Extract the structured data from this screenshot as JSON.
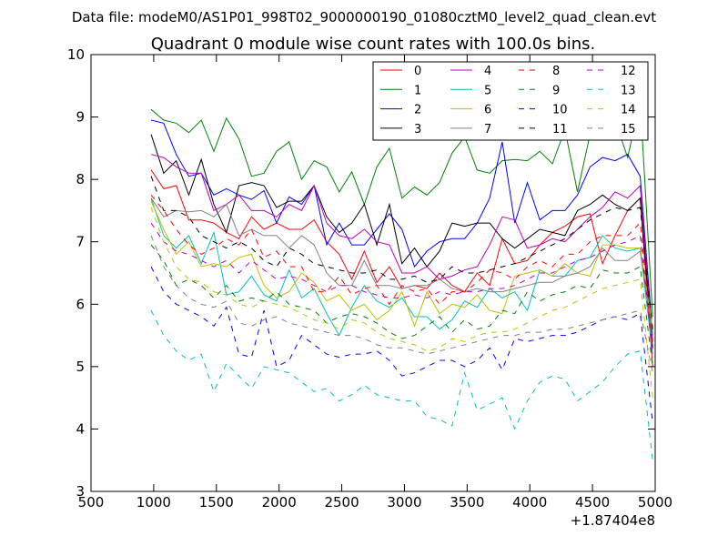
{
  "chart_data": {
    "type": "line",
    "suptitle": "Data file: modeM0/AS1P01_998T02_9000000190_01080cztM0_level2_quad_clean.evt",
    "title": "Quadrant 0 module wise count rates with 100.0s bins.",
    "xlabel": "",
    "ylabel": "",
    "x_offset_label": "+1.87404e8",
    "xlim": [
      500,
      5000
    ],
    "ylim": [
      3,
      10
    ],
    "xticks": [
      "500",
      "1000",
      "1500",
      "2000",
      "2500",
      "3000",
      "3500",
      "4000",
      "4500",
      "5000"
    ],
    "yticks": [
      "3",
      "4",
      "5",
      "6",
      "7",
      "8",
      "9",
      "10"
    ],
    "grid": false,
    "legend_position": "top-right",
    "x": [
      980,
      1080,
      1180,
      1280,
      1380,
      1480,
      1580,
      1680,
      1780,
      1880,
      1980,
      2080,
      2180,
      2280,
      2380,
      2480,
      2580,
      2680,
      2780,
      2880,
      2980,
      3080,
      3180,
      3280,
      3380,
      3480,
      3580,
      3680,
      3780,
      3880,
      3980,
      4080,
      4180,
      4280,
      4380,
      4480,
      4580,
      4680,
      4780,
      4880,
      4980
    ],
    "series": [
      {
        "name": "0",
        "color": "#ff0000",
        "dash": false,
        "values": [
          8.15,
          7.85,
          7.9,
          7.35,
          7.35,
          7.3,
          7.15,
          7.05,
          7.4,
          7.2,
          7.3,
          7.2,
          7.2,
          7.35,
          7.0,
          6.8,
          6.4,
          6.85,
          6.35,
          6.6,
          6.25,
          6.3,
          6.25,
          6.5,
          6.3,
          6.2,
          6.5,
          6.3,
          7.05,
          6.65,
          6.7,
          6.95,
          7.15,
          7.25,
          7.4,
          7.45,
          6.65,
          7.1,
          7.5,
          7.7,
          5.0
        ]
      },
      {
        "name": "1",
        "color": "#008000",
        "dash": false,
        "values": [
          9.12,
          8.95,
          8.9,
          8.75,
          8.95,
          8.45,
          8.98,
          8.65,
          8.05,
          8.1,
          8.45,
          8.6,
          8.0,
          8.3,
          8.2,
          7.8,
          8.12,
          7.6,
          8.2,
          8.5,
          7.7,
          7.88,
          7.75,
          7.95,
          8.42,
          8.68,
          8.15,
          8.1,
          8.3,
          8.32,
          8.3,
          8.45,
          8.25,
          8.8,
          7.8,
          8.72,
          8.95,
          8.95,
          8.35,
          9.25,
          5.8
        ]
      },
      {
        "name": "2",
        "color": "#0000ff",
        "dash": false,
        "values": [
          8.95,
          8.9,
          8.4,
          8.05,
          8.1,
          7.75,
          7.85,
          7.75,
          7.68,
          7.82,
          7.3,
          7.72,
          7.6,
          7.9,
          6.95,
          7.3,
          6.95,
          6.95,
          7.2,
          7.45,
          7.2,
          6.6,
          6.85,
          7.0,
          7.05,
          7.05,
          7.3,
          7.7,
          8.6,
          7.3,
          7.95,
          7.35,
          7.5,
          7.5,
          7.75,
          8.2,
          8.35,
          8.3,
          8.4,
          8.05,
          5.5
        ]
      },
      {
        "name": "3",
        "color": "#000000",
        "dash": false,
        "values": [
          8.72,
          8.1,
          8.3,
          7.75,
          8.32,
          7.6,
          7.15,
          7.9,
          7.95,
          7.9,
          7.55,
          7.65,
          7.65,
          7.9,
          7.4,
          7.15,
          7.3,
          7.6,
          6.95,
          7.6,
          6.65,
          6.9,
          6.6,
          6.85,
          7.3,
          7.25,
          7.3,
          7.3,
          7.05,
          6.9,
          7.05,
          7.2,
          7.15,
          7.1,
          7.5,
          7.6,
          7.75,
          7.6,
          7.5,
          7.7,
          5.3
        ]
      },
      {
        "name": "4",
        "color": "#bf00bf",
        "dash": false,
        "values": [
          8.4,
          8.35,
          8.2,
          8.1,
          8.1,
          7.5,
          7.6,
          7.75,
          7.5,
          7.5,
          7.4,
          7.6,
          7.5,
          7.9,
          7.3,
          7.1,
          7.05,
          7.2,
          7.0,
          6.95,
          6.5,
          6.5,
          6.6,
          6.4,
          6.45,
          6.55,
          6.6,
          6.95,
          7.4,
          7.35,
          6.9,
          6.95,
          7.05,
          7.0,
          7.2,
          7.4,
          7.55,
          7.8,
          7.7,
          7.9,
          5.4
        ]
      },
      {
        "name": "5",
        "color": "#00bfbf",
        "dash": false,
        "values": [
          7.7,
          7.1,
          6.9,
          7.1,
          6.65,
          7.15,
          6.15,
          6.2,
          6.45,
          6.15,
          6.05,
          6.55,
          6.1,
          6.25,
          5.85,
          5.5,
          5.95,
          6.3,
          6.05,
          5.95,
          6.1,
          5.8,
          5.8,
          5.6,
          5.75,
          6.05,
          5.95,
          6.25,
          6.1,
          6.2,
          5.9,
          6.55,
          6.45,
          6.45,
          6.7,
          6.75,
          7.1,
          6.9,
          6.85,
          6.9,
          5.2
        ]
      },
      {
        "name": "6",
        "color": "#bfbf00",
        "dash": false,
        "values": [
          7.65,
          7.2,
          6.8,
          7.0,
          6.6,
          6.65,
          6.6,
          6.75,
          6.8,
          6.3,
          6.1,
          6.2,
          6.5,
          6.35,
          6.05,
          6.15,
          5.9,
          6.0,
          5.75,
          5.9,
          6.2,
          5.65,
          6.2,
          5.85,
          6.0,
          5.95,
          6.15,
          5.9,
          5.85,
          6.45,
          6.5,
          6.55,
          6.45,
          6.65,
          6.5,
          6.45,
          6.95,
          6.95,
          6.9,
          6.9,
          5.6
        ]
      },
      {
        "name": "7",
        "color": "#808080",
        "dash": false,
        "values": [
          7.7,
          7.4,
          7.5,
          7.48,
          7.5,
          7.4,
          7.6,
          7.1,
          7.2,
          7.1,
          7.1,
          6.9,
          7.1,
          6.95,
          6.5,
          6.3,
          6.3,
          6.7,
          6.3,
          6.3,
          6.25,
          6.3,
          6.3,
          6.4,
          6.25,
          6.2,
          6.25,
          6.2,
          6.2,
          6.25,
          6.3,
          6.35,
          6.35,
          6.45,
          6.5,
          6.6,
          6.9,
          6.7,
          6.7,
          6.85,
          5.5
        ]
      },
      {
        "name": "8",
        "color": "#ff0000",
        "dash": true,
        "values": [
          7.75,
          7.5,
          7.2,
          6.95,
          6.8,
          6.9,
          7.05,
          6.95,
          7.2,
          6.75,
          6.85,
          6.6,
          6.6,
          6.2,
          6.2,
          6.45,
          6.15,
          6.25,
          6.3,
          6.0,
          6.3,
          6.2,
          6.25,
          6.0,
          6.2,
          6.2,
          6.35,
          6.55,
          6.5,
          6.4,
          6.6,
          6.7,
          6.6,
          6.8,
          6.8,
          7.0,
          7.1,
          7.1,
          7.1,
          7.3,
          5.3
        ]
      },
      {
        "name": "9",
        "color": "#008000",
        "dash": true,
        "values": [
          6.95,
          6.7,
          6.3,
          6.4,
          6.3,
          6.1,
          6.3,
          6.05,
          6.1,
          6.05,
          6.2,
          6.0,
          5.95,
          5.9,
          5.7,
          5.8,
          5.85,
          5.8,
          5.7,
          5.55,
          5.45,
          5.5,
          5.65,
          5.8,
          5.55,
          5.75,
          5.6,
          5.65,
          5.9,
          5.85,
          6.2,
          6.05,
          6.15,
          6.2,
          6.3,
          6.25,
          6.55,
          6.5,
          6.5,
          6.6,
          5.0
        ]
      },
      {
        "name": "10",
        "color": "#0000ff",
        "dash": true,
        "values": [
          6.6,
          6.2,
          6.0,
          5.9,
          5.8,
          5.65,
          5.95,
          5.2,
          5.15,
          5.9,
          5.0,
          5.1,
          5.5,
          5.35,
          5.2,
          5.15,
          5.2,
          5.2,
          5.25,
          5.1,
          4.85,
          4.9,
          5.0,
          5.1,
          5.1,
          5.0,
          5.1,
          5.3,
          4.95,
          5.45,
          5.4,
          5.45,
          5.5,
          5.5,
          5.55,
          5.65,
          5.75,
          5.8,
          5.75,
          5.85,
          4.1
        ]
      },
      {
        "name": "11",
        "color": "#000000",
        "dash": true,
        "values": [
          8.05,
          7.5,
          7.5,
          7.4,
          7.1,
          7.0,
          6.9,
          7.0,
          6.9,
          6.7,
          6.6,
          6.9,
          6.8,
          6.65,
          6.6,
          6.55,
          6.5,
          6.5,
          6.55,
          6.4,
          6.4,
          6.45,
          6.35,
          6.4,
          6.6,
          6.5,
          6.5,
          6.55,
          6.6,
          6.65,
          6.75,
          6.85,
          6.95,
          7.05,
          7.2,
          7.35,
          7.45,
          7.55,
          7.5,
          7.55,
          5.6
        ]
      },
      {
        "name": "12",
        "color": "#bf00bf",
        "dash": true,
        "values": [
          7.3,
          7.0,
          6.85,
          6.8,
          6.7,
          6.6,
          6.7,
          6.5,
          6.7,
          6.55,
          6.4,
          6.45,
          6.4,
          6.3,
          6.2,
          6.3,
          6.3,
          6.2,
          6.15,
          6.1,
          6.1,
          6.15,
          6.1,
          6.2,
          6.15,
          6.2,
          6.2,
          6.25,
          6.25,
          6.3,
          6.4,
          6.5,
          6.5,
          6.6,
          6.7,
          6.75,
          6.85,
          6.95,
          7.0,
          7.1,
          5.2
        ]
      },
      {
        "name": "13",
        "color": "#00bfbf",
        "dash": true,
        "values": [
          5.9,
          5.5,
          5.25,
          5.1,
          5.2,
          4.6,
          5.05,
          4.85,
          4.65,
          5.0,
          4.95,
          4.9,
          4.75,
          4.6,
          4.65,
          4.45,
          4.55,
          4.7,
          4.55,
          4.5,
          4.45,
          4.45,
          4.2,
          4.15,
          4.05,
          4.9,
          4.3,
          4.4,
          4.5,
          4.0,
          4.45,
          4.75,
          4.85,
          4.8,
          4.45,
          4.6,
          4.75,
          5.0,
          5.2,
          5.25,
          3.5
        ]
      },
      {
        "name": "14",
        "color": "#bfbf00",
        "dash": true,
        "values": [
          7.55,
          7.0,
          6.6,
          6.4,
          6.35,
          6.2,
          6.15,
          6.0,
          5.95,
          6.05,
          6.0,
          5.95,
          5.85,
          5.75,
          5.7,
          5.6,
          5.75,
          5.7,
          5.55,
          5.45,
          5.4,
          5.35,
          5.25,
          5.3,
          5.45,
          5.4,
          5.5,
          5.55,
          5.55,
          5.6,
          5.7,
          5.8,
          5.9,
          5.95,
          6.05,
          6.15,
          6.25,
          6.3,
          6.35,
          6.4,
          4.5
        ]
      },
      {
        "name": "15",
        "color": "#808080",
        "dash": true,
        "values": [
          7.1,
          6.6,
          6.3,
          6.1,
          6.0,
          5.95,
          6.05,
          5.7,
          5.65,
          5.75,
          5.8,
          5.7,
          5.65,
          5.6,
          5.55,
          5.5,
          5.5,
          5.45,
          5.35,
          5.3,
          5.3,
          5.25,
          5.2,
          5.25,
          5.3,
          5.35,
          5.4,
          5.45,
          5.5,
          5.5,
          5.55,
          5.55,
          5.6,
          5.6,
          5.65,
          5.7,
          5.75,
          5.8,
          5.85,
          5.9,
          4.9
        ]
      }
    ]
  }
}
